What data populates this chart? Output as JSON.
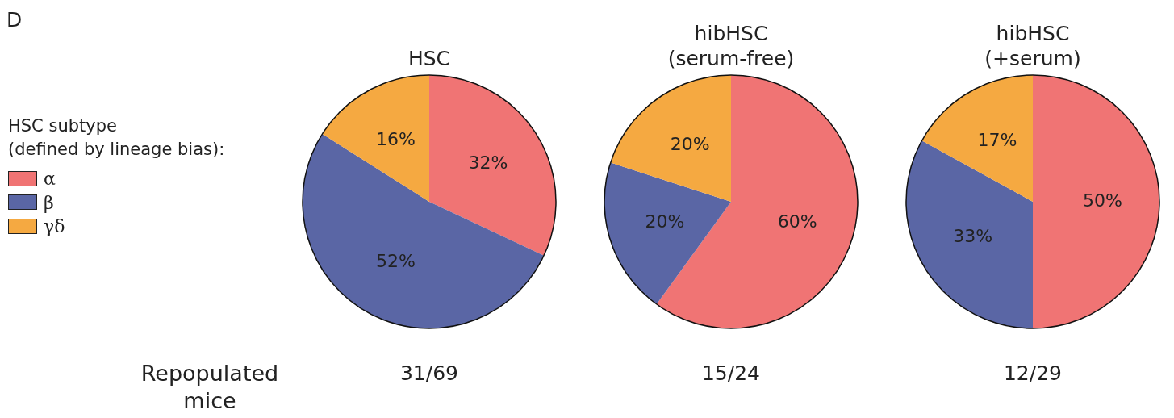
{
  "chart_data": [
    {
      "type": "pie",
      "title": "HSC",
      "categories": [
        "α",
        "β",
        "γδ"
      ],
      "values": [
        32,
        52,
        16
      ],
      "value_labels": [
        "32%",
        "52%",
        "16%"
      ],
      "colors": [
        "#f07474",
        "#5a66a5",
        "#f5a941"
      ],
      "legend": "left",
      "legend_title": "HSC subtype\n(defined by lineage bias):",
      "annotations": [
        "D",
        "Repopulated\nmice",
        "31/69"
      ]
    },
    {
      "type": "pie",
      "title": "hibHSC\n(serum-free)",
      "values": [
        60,
        20,
        20
      ],
      "value_labels": [
        "60%",
        "20%",
        "20%"
      ],
      "colors": [
        "#f07474",
        "#5a66a5",
        "#f5a941"
      ],
      "annotations": [
        "15/24"
      ]
    },
    {
      "type": "pie",
      "title": "hibHSC\n(+serum)",
      "values": [
        50,
        33,
        17
      ],
      "value_labels": [
        "50%",
        "33%",
        "17%"
      ],
      "colors": [
        "#f07474",
        "#5a66a5",
        "#f5a941"
      ],
      "annotations": [
        "12/29"
      ]
    }
  ]
}
